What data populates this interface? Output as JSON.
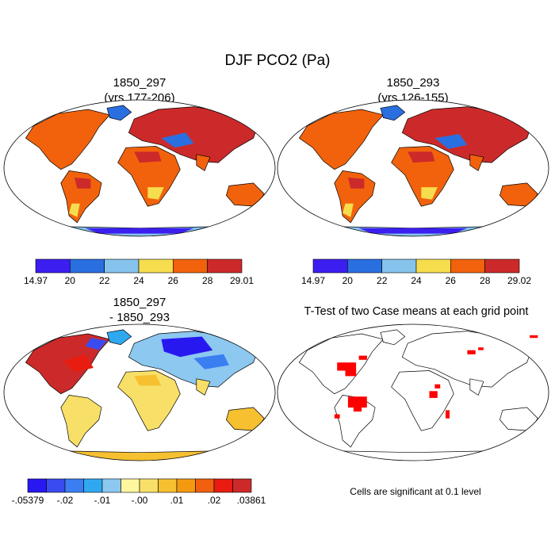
{
  "chart_data": {
    "type": "map-panels",
    "title": "DJF PCO2 (Pa)",
    "panels": [
      {
        "id": "top-left",
        "title_lines": [
          "1850_297",
          "(yrs 177-206)"
        ],
        "colorbar": {
          "labels": [
            "14.97",
            "20",
            "22",
            "24",
            "26",
            "28",
            "29.01"
          ],
          "colors": [
            "#3c1ef0",
            "#2a6fe0",
            "#86c3ec",
            "#f6dd4e",
            "#f2620c",
            "#cc2a2a"
          ]
        }
      },
      {
        "id": "top-right",
        "title_lines": [
          "1850_293",
          "(yrs 126-155)"
        ],
        "colorbar": {
          "labels": [
            "14.97",
            "20",
            "22",
            "24",
            "26",
            "28",
            "29.02"
          ],
          "colors": [
            "#3c1ef0",
            "#2a6fe0",
            "#86c3ec",
            "#f6dd4e",
            "#f2620c",
            "#cc2a2a"
          ]
        }
      },
      {
        "id": "bottom-left",
        "title_lines": [
          "1850_297",
          "- 1850_293"
        ],
        "colorbar": {
          "labels": [
            "-.05379",
            "-.02",
            "-.01",
            "-.00",
            ".01",
            ".02",
            ".03861"
          ],
          "colors": [
            "#2818f0",
            "#3a4cf0",
            "#3a7ef2",
            "#2fa8f0",
            "#8cc8f0",
            "#fff6a0",
            "#f8e068",
            "#f6c030",
            "#f49a10",
            "#f06010",
            "#e81c10",
            "#cc2a2a"
          ]
        }
      },
      {
        "id": "bottom-right",
        "title_lines": [
          "T-Test of two Case means at each grid point"
        ],
        "note": "Cells are significant at 0.1 level",
        "significance_color": "#ff0000"
      }
    ]
  }
}
